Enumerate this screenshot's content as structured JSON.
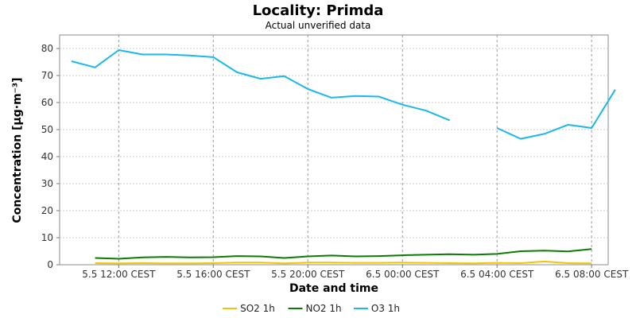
{
  "chart_data": {
    "type": "line",
    "title": "Locality: Primda",
    "subtitle": "Actual unverified data",
    "xlabel": "Date and time",
    "ylabel": "Concentration [µg·m⁻³]",
    "ylim": [
      0,
      85
    ],
    "yticks": [
      0,
      10,
      20,
      30,
      40,
      50,
      60,
      70,
      80
    ],
    "xlim": [
      9.5,
      32.7
    ],
    "x_tick_positions": [
      12,
      16,
      20,
      24,
      28,
      32
    ],
    "x_tick_labels": [
      "5.5 12:00 CEST",
      "5.5 16:00 CEST",
      "5.5 20:00 CEST",
      "6.5 00:00 CEST",
      "6.5 04:00 CEST",
      "6.5 08:00 CEST"
    ],
    "grid": true,
    "legend_position": "bottom",
    "x": [
      10,
      11,
      12,
      13,
      14,
      15,
      16,
      17,
      18,
      19,
      20,
      21,
      22,
      23,
      24,
      25,
      26,
      27,
      28,
      29,
      30,
      31,
      32,
      33
    ],
    "series": [
      {
        "name": "SO2 1h",
        "color": "#f2c500",
        "values": [
          null,
          0.6,
          0.5,
          0.6,
          0.5,
          0.5,
          0.6,
          0.8,
          0.8,
          0.5,
          0.8,
          0.8,
          0.7,
          0.7,
          0.8,
          0.7,
          0.6,
          0.5,
          0.7,
          0.6,
          1.2,
          0.6,
          0.5,
          null
        ]
      },
      {
        "name": "NO2 1h",
        "color": "#0a7d00",
        "values": [
          null,
          2.5,
          2.2,
          2.7,
          2.9,
          2.7,
          2.8,
          3.2,
          3.1,
          2.5,
          3.1,
          3.4,
          3.1,
          3.2,
          3.5,
          3.7,
          3.9,
          3.7,
          4.0,
          5.0,
          5.2,
          4.9,
          5.8,
          null
        ]
      },
      {
        "name": "O3 1h",
        "color": "#1ab8ef",
        "values": [
          75.3,
          73.0,
          79.4,
          77.8,
          77.8,
          77.4,
          76.8,
          71.2,
          68.8,
          69.8,
          65.0,
          61.8,
          62.4,
          62.2,
          59.2,
          57.0,
          53.4,
          null,
          50.6,
          46.6,
          48.4,
          51.8,
          50.6,
          64.8
        ]
      }
    ]
  }
}
